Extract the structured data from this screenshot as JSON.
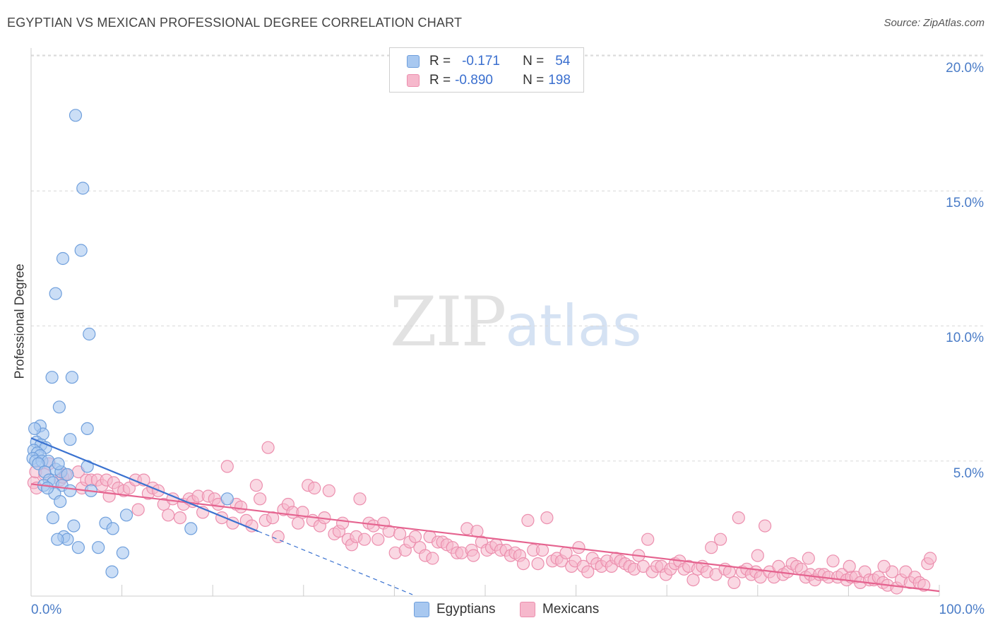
{
  "header": {
    "title": "EGYPTIAN VS MEXICAN PROFESSIONAL DEGREE CORRELATION CHART",
    "source": "Source: ZipAtlas.com"
  },
  "watermark": {
    "zip": "ZIP",
    "atlas": "atlas"
  },
  "legend_top": {
    "rows": [
      {
        "r_label": "R =",
        "r_value": "-0.171",
        "n_label": "N =",
        "n_value": "54"
      },
      {
        "r_label": "R =",
        "r_value": "-0.890",
        "n_label": "N =",
        "n_value": "198"
      }
    ]
  },
  "legend_bottom": [
    {
      "name": "Egyptians"
    },
    {
      "name": "Mexicans"
    }
  ],
  "colors": {
    "egyptians_fill": "#a8c8f0",
    "egyptians_stroke": "#6f9fdc",
    "egyptians_line": "#3a72d0",
    "mexicans_fill": "#f6b8cc",
    "mexicans_stroke": "#ec8fae",
    "mexicans_line": "#e5638f",
    "grid": "#d8d8d8",
    "tick_label": "#4a7cc7"
  },
  "chart_data": {
    "type": "scatter",
    "title": "EGYPTIAN VS MEXICAN PROFESSIONAL DEGREE CORRELATION CHART",
    "xlabel": "",
    "ylabel": "Professional Degree",
    "xlim": [
      0,
      100
    ],
    "ylim": [
      0,
      20.5
    ],
    "x_tick_labels": [
      "0.0%",
      "100.0%"
    ],
    "y_ticks": [
      5,
      10,
      15,
      20
    ],
    "y_tick_labels": [
      "5.0%",
      "10.0%",
      "15.0%",
      "20.0%"
    ],
    "grid": true,
    "series": [
      {
        "name": "Egyptians",
        "R": -0.171,
        "N": 54,
        "trend": {
          "x_start": 0,
          "y_start": 5.85,
          "x_solid_end": 25,
          "x_dash_end": 42,
          "slope": -0.138
        },
        "points": [
          [
            4.9,
            17.8
          ],
          [
            5.7,
            15.1
          ],
          [
            5.5,
            12.8
          ],
          [
            3.5,
            12.5
          ],
          [
            2.7,
            11.2
          ],
          [
            6.4,
            9.7
          ],
          [
            2.3,
            8.1
          ],
          [
            4.5,
            8.1
          ],
          [
            3.1,
            7.0
          ],
          [
            6.2,
            6.2
          ],
          [
            1.0,
            6.3
          ],
          [
            1.3,
            6.0
          ],
          [
            0.4,
            6.2
          ],
          [
            0.6,
            5.7
          ],
          [
            1.1,
            5.6
          ],
          [
            1.6,
            5.5
          ],
          [
            0.3,
            5.4
          ],
          [
            0.7,
            5.3
          ],
          [
            1.0,
            5.2
          ],
          [
            0.2,
            5.1
          ],
          [
            0.5,
            5.0
          ],
          [
            1.2,
            5.0
          ],
          [
            1.9,
            5.0
          ],
          [
            0.8,
            4.9
          ],
          [
            2.7,
            4.7
          ],
          [
            1.5,
            4.6
          ],
          [
            3.3,
            4.6
          ],
          [
            4.0,
            4.5
          ],
          [
            6.2,
            4.8
          ],
          [
            4.3,
            5.8
          ],
          [
            2.0,
            4.3
          ],
          [
            2.4,
            4.2
          ],
          [
            3.4,
            4.1
          ],
          [
            1.4,
            4.1
          ],
          [
            4.3,
            3.9
          ],
          [
            6.6,
            3.9
          ],
          [
            2.6,
            3.8
          ],
          [
            3.2,
            3.5
          ],
          [
            10.5,
            3.0
          ],
          [
            2.4,
            2.9
          ],
          [
            8.2,
            2.7
          ],
          [
            9.0,
            2.5
          ],
          [
            4.7,
            2.6
          ],
          [
            3.6,
            2.2
          ],
          [
            4.0,
            2.1
          ],
          [
            2.9,
            2.1
          ],
          [
            5.2,
            1.8
          ],
          [
            7.4,
            1.8
          ],
          [
            10.1,
            1.6
          ],
          [
            8.9,
            0.9
          ],
          [
            17.6,
            2.5
          ],
          [
            21.6,
            3.6
          ],
          [
            1.8,
            4.0
          ],
          [
            3.0,
            4.9
          ]
        ]
      },
      {
        "name": "Mexicans",
        "R": -0.89,
        "N": 198,
        "trend": {
          "x_start": 0,
          "y_start": 4.15,
          "x_end": 100,
          "y_end": 0.18
        },
        "points": [
          [
            0.3,
            4.2
          ],
          [
            0.5,
            4.6
          ],
          [
            0.6,
            4.0
          ],
          [
            1.5,
            4.5
          ],
          [
            2.0,
            4.9
          ],
          [
            3.2,
            4.3
          ],
          [
            3.5,
            4.4
          ],
          [
            3.8,
            4.5
          ],
          [
            5.2,
            4.6
          ],
          [
            5.6,
            4.0
          ],
          [
            6.1,
            4.3
          ],
          [
            6.6,
            4.3
          ],
          [
            7.3,
            4.3
          ],
          [
            7.8,
            4.1
          ],
          [
            8.3,
            4.3
          ],
          [
            8.6,
            3.7
          ],
          [
            9.1,
            4.2
          ],
          [
            9.6,
            4.0
          ],
          [
            10.2,
            3.9
          ],
          [
            10.8,
            4.0
          ],
          [
            11.5,
            4.3
          ],
          [
            11.8,
            3.2
          ],
          [
            12.4,
            4.3
          ],
          [
            12.9,
            3.8
          ],
          [
            13.4,
            4.0
          ],
          [
            14.0,
            3.9
          ],
          [
            14.6,
            3.4
          ],
          [
            15.1,
            3.0
          ],
          [
            15.6,
            3.6
          ],
          [
            16.4,
            2.9
          ],
          [
            16.8,
            3.4
          ],
          [
            17.4,
            3.6
          ],
          [
            17.8,
            3.5
          ],
          [
            18.4,
            3.7
          ],
          [
            18.9,
            3.1
          ],
          [
            19.5,
            3.7
          ],
          [
            20.2,
            3.6
          ],
          [
            20.6,
            3.4
          ],
          [
            21.0,
            2.9
          ],
          [
            21.6,
            4.8
          ],
          [
            22.2,
            2.7
          ],
          [
            22.6,
            3.4
          ],
          [
            23.1,
            3.3
          ],
          [
            23.7,
            2.8
          ],
          [
            24.3,
            2.6
          ],
          [
            24.8,
            4.1
          ],
          [
            25.2,
            3.6
          ],
          [
            25.8,
            2.8
          ],
          [
            26.1,
            5.5
          ],
          [
            26.6,
            2.9
          ],
          [
            27.2,
            2.2
          ],
          [
            27.8,
            3.2
          ],
          [
            28.3,
            3.4
          ],
          [
            28.8,
            3.1
          ],
          [
            29.4,
            2.7
          ],
          [
            29.9,
            3.1
          ],
          [
            30.5,
            4.1
          ],
          [
            31.0,
            2.8
          ],
          [
            31.2,
            4.0
          ],
          [
            31.8,
            2.6
          ],
          [
            32.3,
            2.9
          ],
          [
            32.8,
            3.9
          ],
          [
            33.4,
            2.3
          ],
          [
            33.9,
            2.4
          ],
          [
            34.3,
            2.7
          ],
          [
            34.9,
            2.1
          ],
          [
            35.3,
            1.9
          ],
          [
            35.8,
            2.2
          ],
          [
            36.2,
            3.6
          ],
          [
            36.7,
            2.1
          ],
          [
            37.2,
            2.7
          ],
          [
            37.7,
            2.6
          ],
          [
            38.2,
            2.1
          ],
          [
            38.8,
            2.7
          ],
          [
            39.4,
            2.4
          ],
          [
            40.1,
            1.6
          ],
          [
            40.6,
            2.3
          ],
          [
            41.2,
            1.7
          ],
          [
            41.7,
            2.0
          ],
          [
            42.3,
            2.2
          ],
          [
            42.8,
            1.8
          ],
          [
            43.4,
            1.5
          ],
          [
            43.9,
            2.2
          ],
          [
            44.2,
            1.4
          ],
          [
            44.8,
            2.0
          ],
          [
            45.3,
            2.0
          ],
          [
            45.8,
            1.9
          ],
          [
            46.4,
            1.8
          ],
          [
            46.9,
            1.6
          ],
          [
            47.4,
            1.6
          ],
          [
            48.0,
            2.5
          ],
          [
            48.5,
            1.7
          ],
          [
            48.7,
            1.5
          ],
          [
            49.1,
            2.4
          ],
          [
            49.6,
            2.0
          ],
          [
            50.2,
            1.7
          ],
          [
            50.7,
            1.8
          ],
          [
            51.2,
            1.9
          ],
          [
            51.7,
            1.7
          ],
          [
            52.3,
            1.7
          ],
          [
            52.8,
            1.5
          ],
          [
            53.3,
            1.6
          ],
          [
            53.8,
            1.5
          ],
          [
            54.2,
            1.2
          ],
          [
            54.7,
            2.8
          ],
          [
            55.3,
            1.7
          ],
          [
            55.8,
            1.2
          ],
          [
            56.3,
            1.7
          ],
          [
            56.8,
            2.9
          ],
          [
            57.4,
            1.3
          ],
          [
            57.9,
            1.4
          ],
          [
            58.4,
            1.3
          ],
          [
            58.9,
            1.6
          ],
          [
            59.5,
            1.1
          ],
          [
            59.9,
            1.3
          ],
          [
            60.3,
            1.8
          ],
          [
            60.8,
            1.1
          ],
          [
            61.3,
            0.9
          ],
          [
            61.8,
            1.4
          ],
          [
            62.3,
            1.2
          ],
          [
            62.8,
            1.1
          ],
          [
            63.4,
            1.3
          ],
          [
            63.9,
            1.1
          ],
          [
            64.4,
            1.4
          ],
          [
            64.9,
            1.3
          ],
          [
            65.4,
            1.2
          ],
          [
            65.9,
            1.1
          ],
          [
            66.4,
            1.0
          ],
          [
            66.9,
            1.5
          ],
          [
            67.4,
            1.1
          ],
          [
            67.9,
            2.1
          ],
          [
            68.4,
            0.9
          ],
          [
            68.9,
            1.1
          ],
          [
            69.4,
            1.1
          ],
          [
            69.9,
            0.8
          ],
          [
            70.4,
            1.0
          ],
          [
            70.9,
            1.2
          ],
          [
            71.4,
            1.3
          ],
          [
            71.9,
            1.0
          ],
          [
            72.4,
            1.1
          ],
          [
            72.9,
            0.6
          ],
          [
            73.4,
            1.0
          ],
          [
            73.9,
            1.1
          ],
          [
            74.4,
            0.9
          ],
          [
            74.9,
            1.8
          ],
          [
            75.4,
            0.8
          ],
          [
            75.9,
            2.1
          ],
          [
            76.4,
            1.0
          ],
          [
            76.9,
            0.9
          ],
          [
            77.4,
            0.5
          ],
          [
            77.9,
            2.9
          ],
          [
            78.3,
            0.9
          ],
          [
            78.8,
            1.0
          ],
          [
            79.3,
            0.8
          ],
          [
            79.8,
            0.9
          ],
          [
            80.3,
            0.7
          ],
          [
            80.8,
            2.6
          ],
          [
            81.3,
            0.9
          ],
          [
            81.8,
            0.7
          ],
          [
            82.3,
            1.1
          ],
          [
            82.8,
            0.8
          ],
          [
            83.3,
            0.9
          ],
          [
            83.8,
            1.2
          ],
          [
            84.3,
            1.1
          ],
          [
            84.8,
            1.0
          ],
          [
            85.3,
            0.7
          ],
          [
            85.8,
            0.8
          ],
          [
            86.3,
            0.6
          ],
          [
            86.8,
            0.8
          ],
          [
            87.3,
            0.8
          ],
          [
            87.8,
            0.7
          ],
          [
            88.3,
            1.3
          ],
          [
            88.8,
            0.7
          ],
          [
            89.3,
            0.8
          ],
          [
            89.8,
            0.6
          ],
          [
            90.3,
            0.7
          ],
          [
            90.8,
            0.7
          ],
          [
            91.3,
            0.5
          ],
          [
            91.8,
            0.9
          ],
          [
            92.3,
            0.6
          ],
          [
            92.8,
            0.6
          ],
          [
            93.3,
            0.7
          ],
          [
            93.8,
            0.5
          ],
          [
            94.3,
            0.4
          ],
          [
            94.8,
            0.9
          ],
          [
            95.3,
            0.3
          ],
          [
            95.8,
            0.6
          ],
          [
            96.3,
            0.9
          ],
          [
            96.8,
            0.5
          ],
          [
            97.3,
            0.7
          ],
          [
            97.8,
            0.5
          ],
          [
            98.3,
            0.4
          ],
          [
            98.7,
            1.2
          ],
          [
            99.0,
            1.4
          ],
          [
            80.0,
            1.5
          ],
          [
            85.6,
            1.4
          ],
          [
            90.1,
            1.1
          ],
          [
            93.9,
            1.1
          ]
        ]
      }
    ]
  }
}
